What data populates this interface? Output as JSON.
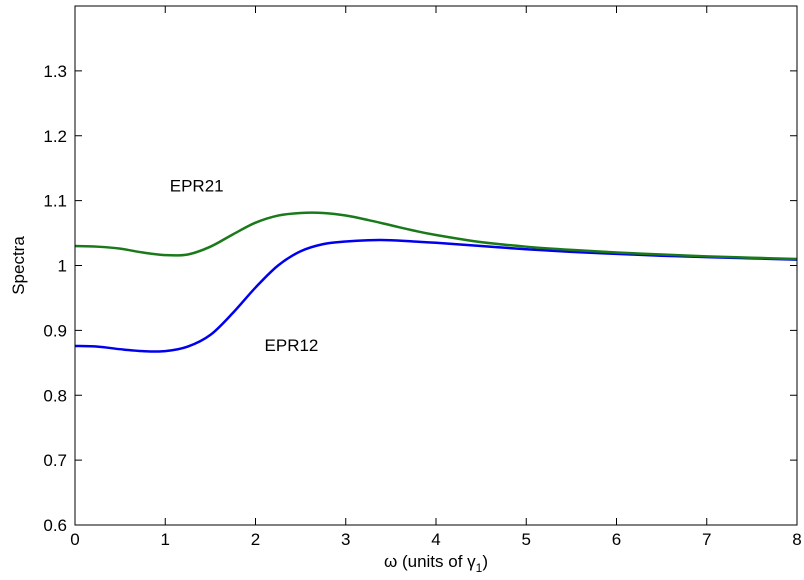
{
  "chart_data": {
    "type": "line",
    "title": "",
    "xlabel": {
      "prefix": "ω (units of γ",
      "subscript": "1",
      "suffix": ")"
    },
    "ylabel": "Spectra",
    "xlim": [
      0,
      8
    ],
    "ylim": [
      0.6,
      1.4
    ],
    "x_ticks": [
      "0",
      "1",
      "2",
      "3",
      "4",
      "5",
      "6",
      "7",
      "8"
    ],
    "y_ticks": [
      "0.6",
      "0.7",
      "0.8",
      "0.9",
      "1",
      "1.1",
      "1.2",
      "1.3"
    ],
    "grid": false,
    "legend": "none",
    "annotations": [
      {
        "text": "EPR21",
        "x": 1.05,
        "y": 1.114
      },
      {
        "text": "EPR12",
        "x": 2.1,
        "y": 0.868
      }
    ],
    "series": [
      {
        "color": "#0000ee",
        "x": [
          0,
          0.25,
          0.5,
          0.75,
          1.0,
          1.25,
          1.5,
          1.75,
          2.0,
          2.25,
          2.5,
          2.75,
          3.0,
          3.25,
          3.5,
          3.75,
          4.0,
          4.5,
          5.0,
          5.5,
          6.0,
          6.5,
          7.0,
          7.5,
          8.0
        ],
        "y": [
          0.876,
          0.875,
          0.871,
          0.868,
          0.868,
          0.875,
          0.893,
          0.927,
          0.966,
          1.0,
          1.022,
          1.033,
          1.037,
          1.039,
          1.039,
          1.037,
          1.035,
          1.03,
          1.025,
          1.021,
          1.018,
          1.015,
          1.013,
          1.011,
          1.009
        ]
      },
      {
        "color": "#1a7a1a",
        "x": [
          0,
          0.25,
          0.5,
          0.75,
          1.0,
          1.25,
          1.5,
          1.75,
          2.0,
          2.25,
          2.5,
          2.75,
          3.0,
          3.25,
          3.5,
          3.75,
          4.0,
          4.5,
          5.0,
          5.5,
          6.0,
          6.5,
          7.0,
          7.5,
          8.0
        ],
        "y": [
          1.03,
          1.029,
          1.026,
          1.02,
          1.016,
          1.017,
          1.029,
          1.048,
          1.066,
          1.077,
          1.081,
          1.081,
          1.077,
          1.07,
          1.062,
          1.054,
          1.047,
          1.036,
          1.029,
          1.024,
          1.02,
          1.017,
          1.014,
          1.012,
          1.01
        ]
      }
    ]
  }
}
